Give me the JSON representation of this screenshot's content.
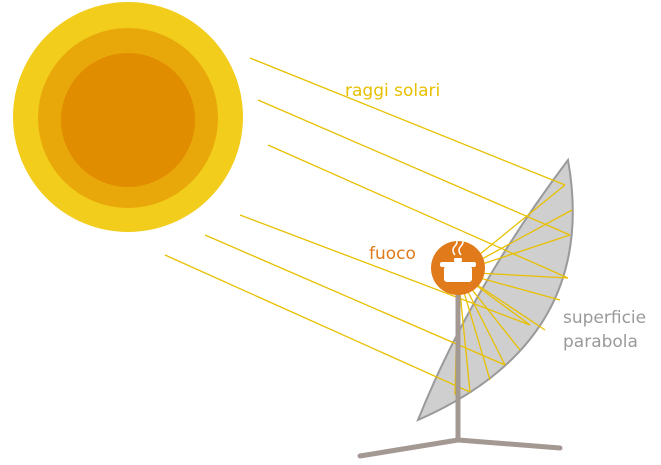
{
  "labels": {
    "rays": "raggi solari",
    "focus": "fuoco",
    "surface": [
      "superficie",
      "parabola"
    ]
  }
}
